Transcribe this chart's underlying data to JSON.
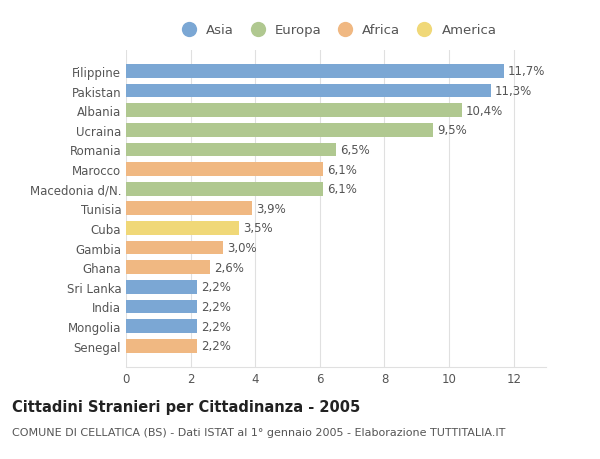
{
  "categories": [
    "Senegal",
    "Mongolia",
    "India",
    "Sri Lanka",
    "Ghana",
    "Gambia",
    "Cuba",
    "Tunisia",
    "Macedonia d/N.",
    "Marocco",
    "Romania",
    "Ucraina",
    "Albania",
    "Pakistan",
    "Filippine"
  ],
  "values": [
    2.2,
    2.2,
    2.2,
    2.2,
    2.6,
    3.0,
    3.5,
    3.9,
    6.1,
    6.1,
    6.5,
    9.5,
    10.4,
    11.3,
    11.7
  ],
  "colors": [
    "#f0b882",
    "#7ba7d4",
    "#7ba7d4",
    "#7ba7d4",
    "#f0b882",
    "#f0b882",
    "#f0d878",
    "#f0b882",
    "#b0c890",
    "#f0b882",
    "#b0c890",
    "#b0c890",
    "#b0c890",
    "#7ba7d4",
    "#7ba7d4"
  ],
  "labels": [
    "2,2%",
    "2,2%",
    "2,2%",
    "2,2%",
    "2,6%",
    "3,0%",
    "3,5%",
    "3,9%",
    "6,1%",
    "6,1%",
    "6,5%",
    "9,5%",
    "10,4%",
    "11,3%",
    "11,7%"
  ],
  "legend_labels": [
    "Asia",
    "Europa",
    "Africa",
    "America"
  ],
  "legend_colors": [
    "#7ba7d4",
    "#b0c890",
    "#f0b882",
    "#f0d878"
  ],
  "title": "Cittadini Stranieri per Cittadinanza - 2005",
  "subtitle": "COMUNE DI CELLATICA (BS) - Dati ISTAT al 1° gennaio 2005 - Elaborazione TUTTITALIA.IT",
  "xlim": [
    0,
    13
  ],
  "xticks": [
    0,
    2,
    4,
    6,
    8,
    10,
    12
  ],
  "background_color": "#ffffff",
  "grid_color": "#e0e0e0",
  "text_color": "#555555",
  "bar_height": 0.7,
  "label_fontsize": 8.5,
  "title_fontsize": 10.5,
  "subtitle_fontsize": 8,
  "tick_fontsize": 8.5,
  "legend_fontsize": 9.5
}
